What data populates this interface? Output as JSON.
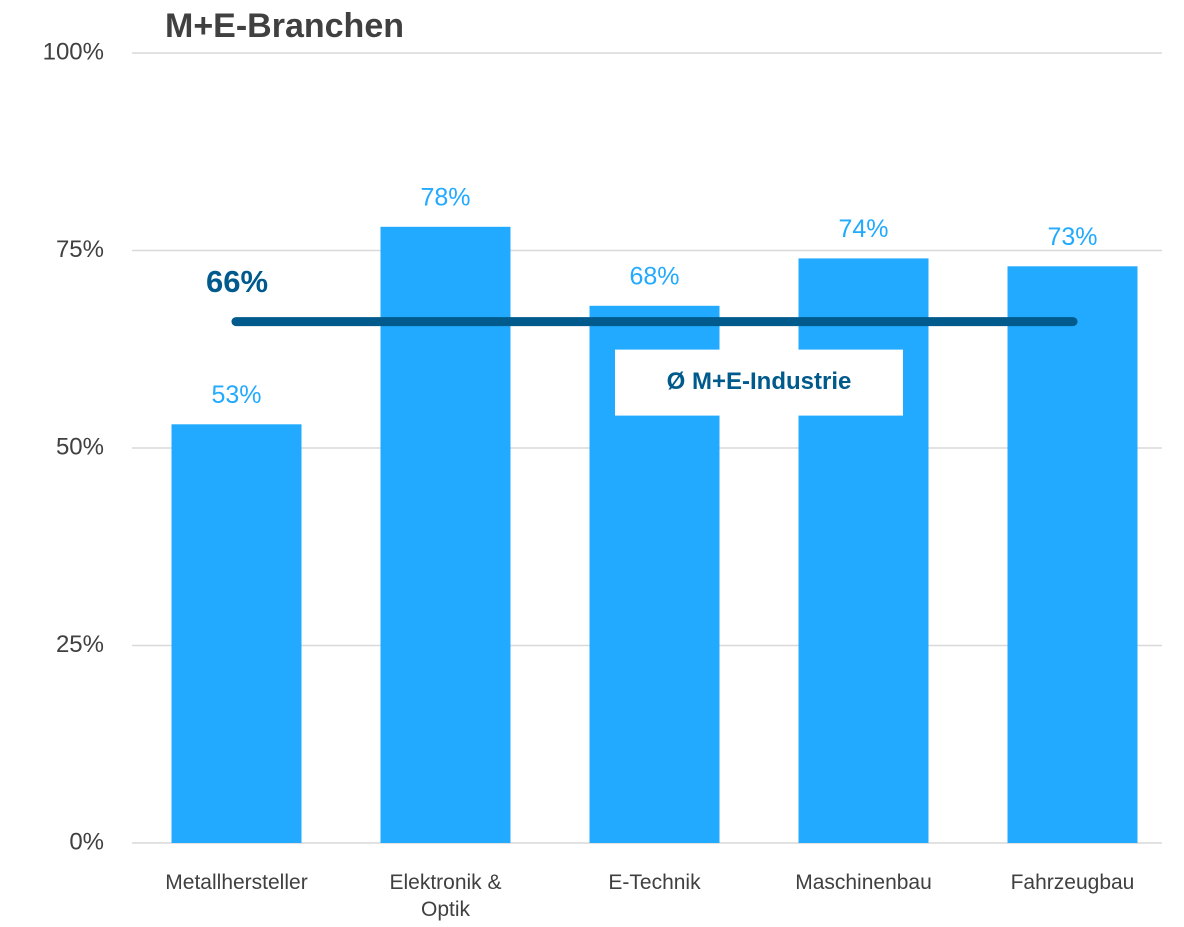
{
  "chart_data": {
    "type": "bar",
    "title": "M+E-Branchen",
    "categories": [
      "Metallhersteller",
      "Elektronik &\nOptik",
      "E-Technik",
      "Maschinenbau",
      "Fahrzeugbau"
    ],
    "values": [
      53,
      78,
      68,
      74,
      73
    ],
    "value_labels": [
      "53%",
      "78%",
      "68%",
      "74%",
      "73%"
    ],
    "color": "#21aaff",
    "ylim": [
      0,
      100
    ],
    "yticks": [
      {
        "value": 0,
        "label": "0%"
      },
      {
        "value": 25,
        "label": "25%"
      },
      {
        "value": 50,
        "label": "50%"
      },
      {
        "value": 75,
        "label": "75%"
      },
      {
        "value": 100,
        "label": "100%"
      }
    ],
    "grid": true,
    "average": {
      "value": 66,
      "label": "66%",
      "name": "Ø M+E-Industrie",
      "color": "#005a8c"
    }
  }
}
